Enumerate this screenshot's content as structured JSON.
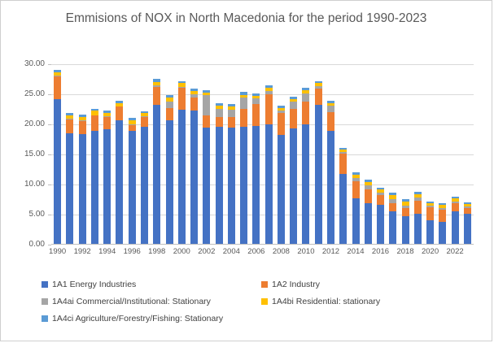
{
  "title": "Emmisions of NOX in North Macedonia for the period 1990-2023",
  "chart_data": {
    "type": "bar",
    "stacked": true,
    "title": "Emmisions of NOX in North Macedonia for the period 1990-2023",
    "xlabel": "",
    "ylabel": "",
    "ylim": [
      0,
      30
    ],
    "grid": true,
    "legend_position": "bottom",
    "y_ticks": [
      "30.00",
      "25.00",
      "20.00",
      "15.00",
      "10.00",
      "5.00",
      "0.00"
    ],
    "x_tick_labels": [
      "1990",
      "1992",
      "1994",
      "1996",
      "1998",
      "2000",
      "2002",
      "2004",
      "2006",
      "2008",
      "2010",
      "2012",
      "2014",
      "2016",
      "2018",
      "2020",
      "2022"
    ],
    "categories": [
      "1990",
      "1991",
      "1992",
      "1993",
      "1994",
      "1995",
      "1996",
      "1997",
      "1998",
      "1999",
      "2000",
      "2001",
      "2002",
      "2003",
      "2004",
      "2005",
      "2006",
      "2007",
      "2008",
      "2009",
      "2010",
      "2011",
      "2012",
      "2013",
      "2014",
      "2015",
      "2016",
      "2017",
      "2018",
      "2019",
      "2020",
      "2021",
      "2022",
      "2023"
    ],
    "series": [
      {
        "name": "1A1 Energy Industries",
        "color": "#4472C4",
        "values": [
          24.0,
          18.4,
          18.3,
          18.8,
          19.1,
          20.6,
          18.8,
          19.4,
          23.1,
          20.6,
          22.3,
          22.2,
          19.3,
          19.5,
          19.3,
          19.5,
          19.6,
          19.8,
          18.1,
          19.2,
          19.9,
          23.1,
          18.8,
          11.6,
          7.6,
          6.8,
          6.5,
          5.4,
          4.6,
          5.0,
          3.9,
          3.7,
          5.4,
          5.0
        ]
      },
      {
        "name": "1A2 Industry",
        "color": "#ED7D31",
        "values": [
          3.9,
          2.3,
          2.1,
          2.5,
          2.0,
          2.2,
          1.0,
          1.7,
          3.0,
          2.0,
          3.6,
          2.1,
          2.1,
          1.6,
          1.8,
          2.9,
          3.6,
          5.0,
          3.6,
          3.3,
          3.8,
          2.7,
          3.1,
          3.4,
          2.8,
          2.2,
          1.6,
          1.3,
          1.3,
          2.2,
          2.2,
          2.0,
          1.4,
          1.0
        ]
      },
      {
        "name": "1A4ai Commercial/Institutional: Stationary",
        "color": "#A5A5A5",
        "values": [
          0.1,
          0.1,
          0.1,
          0.1,
          0.1,
          0.1,
          0.1,
          0.1,
          0.2,
          1.1,
          0.2,
          0.6,
          3.3,
          1.4,
          1.2,
          1.9,
          1.0,
          0.6,
          0.5,
          1.1,
          1.3,
          0.4,
          1.1,
          0.3,
          0.6,
          0.7,
          0.4,
          0.7,
          0.5,
          0.5,
          0.2,
          0.3,
          0.2,
          0.2
        ]
      },
      {
        "name": "1A4bi Residential: stationary",
        "color": "#FFC000",
        "values": [
          0.5,
          0.5,
          0.6,
          0.7,
          0.6,
          0.5,
          0.6,
          0.5,
          0.6,
          0.6,
          0.6,
          0.5,
          0.4,
          0.5,
          0.5,
          0.5,
          0.4,
          0.5,
          0.4,
          0.5,
          0.5,
          0.5,
          0.4,
          0.4,
          0.5,
          0.6,
          0.5,
          0.7,
          0.7,
          0.6,
          0.4,
          0.5,
          0.6,
          0.4
        ]
      },
      {
        "name": "1A4ci Agriculture/Forestry/Fishing: Stationary",
        "color": "#5B9BD5",
        "values": [
          0.4,
          0.4,
          0.4,
          0.4,
          0.4,
          0.4,
          0.4,
          0.4,
          0.5,
          0.4,
          0.4,
          0.4,
          0.5,
          0.4,
          0.4,
          0.5,
          0.4,
          0.5,
          0.4,
          0.4,
          0.5,
          0.4,
          0.4,
          0.3,
          0.4,
          0.4,
          0.3,
          0.4,
          0.3,
          0.3,
          0.3,
          0.3,
          0.3,
          0.3
        ]
      }
    ]
  },
  "colors": {
    "grid": "#D9D9D9",
    "axis_text": "#595959",
    "legend_text": "#404040",
    "title_text": "#595959"
  }
}
